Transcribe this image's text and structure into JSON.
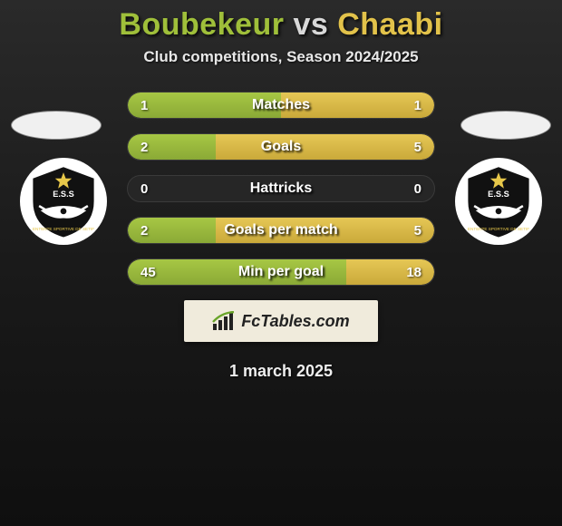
{
  "title": {
    "player1": "Boubekeur",
    "vs": "vs",
    "player2": "Chaabi",
    "colors": {
      "p1": "#9fbf3a",
      "vs": "#d8d8d8",
      "p2": "#e2c24a"
    }
  },
  "subtitle": "Club competitions, Season 2024/2025",
  "stats": [
    {
      "label": "Matches",
      "left_val": "1",
      "right_val": "1",
      "left_pct": 50,
      "right_pct": 50
    },
    {
      "label": "Goals",
      "left_val": "2",
      "right_val": "5",
      "left_pct": 28.6,
      "right_pct": 71.4
    },
    {
      "label": "Hattricks",
      "left_val": "0",
      "right_val": "0",
      "left_pct": 0,
      "right_pct": 0
    },
    {
      "label": "Goals per match",
      "left_val": "2",
      "right_val": "5",
      "left_pct": 28.6,
      "right_pct": 71.4
    },
    {
      "label": "Min per goal",
      "left_val": "45",
      "right_val": "18",
      "left_pct": 71.4,
      "right_pct": 28.6
    }
  ],
  "bar_colors": {
    "left": "#a7c744",
    "right": "#e6c755",
    "track": "#262626"
  },
  "clubs": {
    "left": {
      "name": "ES Sétif",
      "abbr": "E.S.S"
    },
    "right": {
      "name": "ES Sétif",
      "abbr": "E.S.S"
    }
  },
  "footer_brand": "FcTables.com",
  "date": "1 march 2025",
  "background_gradient": [
    "#2a2a2a",
    "#1a1a1a",
    "#0f0f0f"
  ]
}
